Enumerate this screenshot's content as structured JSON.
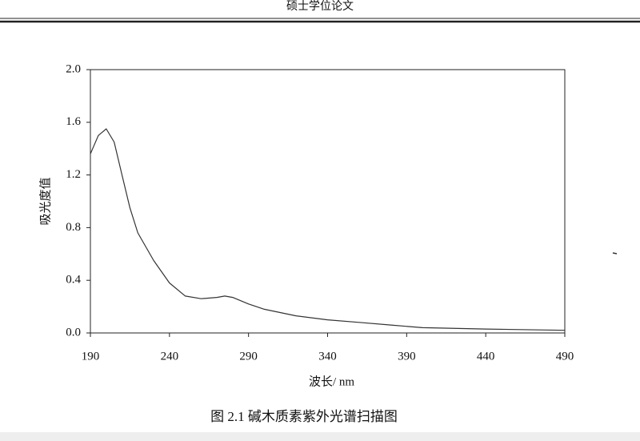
{
  "header": {
    "title": "硕士学位论文"
  },
  "caption": "图 2.1 碱木质素紫外光谱扫描图",
  "chart_data": {
    "type": "line",
    "x_label": "波长/ nm",
    "y_label": "吸光度值",
    "x": [
      190,
      195,
      200,
      205,
      210,
      215,
      220,
      230,
      240,
      250,
      260,
      270,
      275,
      280,
      290,
      300,
      320,
      340,
      360,
      380,
      400,
      440,
      490
    ],
    "values": [
      1.36,
      1.5,
      1.55,
      1.45,
      1.2,
      0.95,
      0.76,
      0.55,
      0.38,
      0.28,
      0.26,
      0.27,
      0.28,
      0.27,
      0.22,
      0.18,
      0.13,
      0.1,
      0.08,
      0.06,
      0.04,
      0.03,
      0.02
    ],
    "color": "#333333",
    "xlim": [
      190,
      490
    ],
    "ylim": [
      0,
      2
    ],
    "xticks": [
      190,
      240,
      290,
      340,
      390,
      440,
      490
    ],
    "yticks": [
      {
        "value": 0,
        "label": "0.0"
      },
      0.4,
      0.8,
      1.2,
      1.6,
      {
        "value": 2,
        "label": "2.0"
      }
    ]
  }
}
